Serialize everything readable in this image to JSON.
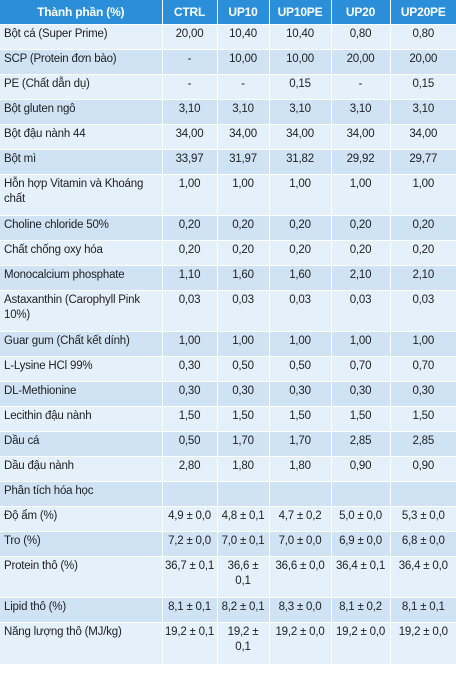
{
  "table": {
    "headers": [
      "Thành phần (%)",
      "CTRL",
      "UP10",
      "UP10PE",
      "UP20",
      "UP20PE"
    ],
    "rows": [
      [
        "Bột cá (Super Prime)",
        "20,00",
        "10,40",
        "10,40",
        "0,80",
        "0,80"
      ],
      [
        "SCP (Protein đơn bào)",
        "-",
        "10,00",
        "10,00",
        "20,00",
        "20,00"
      ],
      [
        "PE (Chất dẫn dụ)",
        "-",
        "-",
        "0,15",
        "-",
        "0,15"
      ],
      [
        "Bột gluten ngô",
        "3,10",
        "3,10",
        "3,10",
        "3,10",
        "3,10"
      ],
      [
        "Bột đậu nành 44",
        "34,00",
        "34,00",
        "34,00",
        "34,00",
        "34,00"
      ],
      [
        "Bột mì",
        "33,97",
        "31,97",
        "31,82",
        "29,92",
        "29,77"
      ],
      [
        "Hỗn hợp Vitamin và Khoáng chất",
        "1,00",
        "1,00",
        "1,00",
        "1,00",
        "1,00"
      ],
      [
        "Choline chloride 50%",
        "0,20",
        "0,20",
        "0,20",
        "0,20",
        "0,20"
      ],
      [
        "Chất chống oxy hóa",
        "0,20",
        "0,20",
        "0,20",
        "0,20",
        "0,20"
      ],
      [
        "Monocalcium phosphate",
        "1,10",
        "1,60",
        "1,60",
        "2,10",
        "2,10"
      ],
      [
        "Astaxanthin (Carophyll Pink 10%)",
        "0,03",
        "0,03",
        "0,03",
        "0,03",
        "0,03"
      ],
      [
        "Guar gum (Chất kết dính)",
        "1,00",
        "1,00",
        "1,00",
        "1,00",
        "1,00"
      ],
      [
        "L-Lysine HCl 99%",
        "0,30",
        "0,50",
        "0,50",
        "0,70",
        "0,70"
      ],
      [
        "DL-Methionine",
        "0,30",
        "0,30",
        "0,30",
        "0,30",
        "0,30"
      ],
      [
        "Lecithin đậu nành",
        "1,50",
        "1,50",
        "1,50",
        "1,50",
        "1,50"
      ],
      [
        "Dầu cá",
        "0,50",
        "1,70",
        "1,70",
        "2,85",
        "2,85"
      ],
      [
        "Dầu đậu nành",
        "2,80",
        "1,80",
        "1,80",
        "0,90",
        "0,90"
      ],
      [
        "Phân tích hóa học",
        "",
        "",
        "",
        "",
        ""
      ],
      [
        "Độ ẩm (%)",
        "4,9 ± 0,0",
        "4,8 ± 0,1",
        "4,7 ± 0,2",
        "5,0 ± 0,0",
        "5,3 ± 0,0"
      ],
      [
        "Tro (%)",
        "7,2 ± 0,0",
        "7,0 ± 0,1",
        "7,0 ± 0,0",
        "6,9 ± 0,0",
        "6,8 ± 0,0"
      ],
      [
        "Protein thô (%)",
        "36,7 ± 0,1",
        "36,6 ± 0,1",
        "36,6 ± 0,0",
        "36,4 ± 0,1",
        "36,4 ± 0,0"
      ],
      [
        "Lipid thô (%)",
        "8,1 ± 0,1",
        "8,2 ± 0,1",
        "8,3 ± 0,0",
        "8,1 ± 0,2",
        "8,1 ± 0,1"
      ],
      [
        "Năng lượng thô (MJ/kg)",
        "19,2 ± 0,1",
        "19,2 ± 0,1",
        "19,2 ± 0,0",
        "19,2 ± 0,0",
        "19,2 ± 0,0"
      ]
    ]
  },
  "colors": {
    "header_bg": "#2a8fd8",
    "header_text": "#ffffff",
    "row_light": "#e4f0fa",
    "row_dark": "#cfe3f5"
  }
}
